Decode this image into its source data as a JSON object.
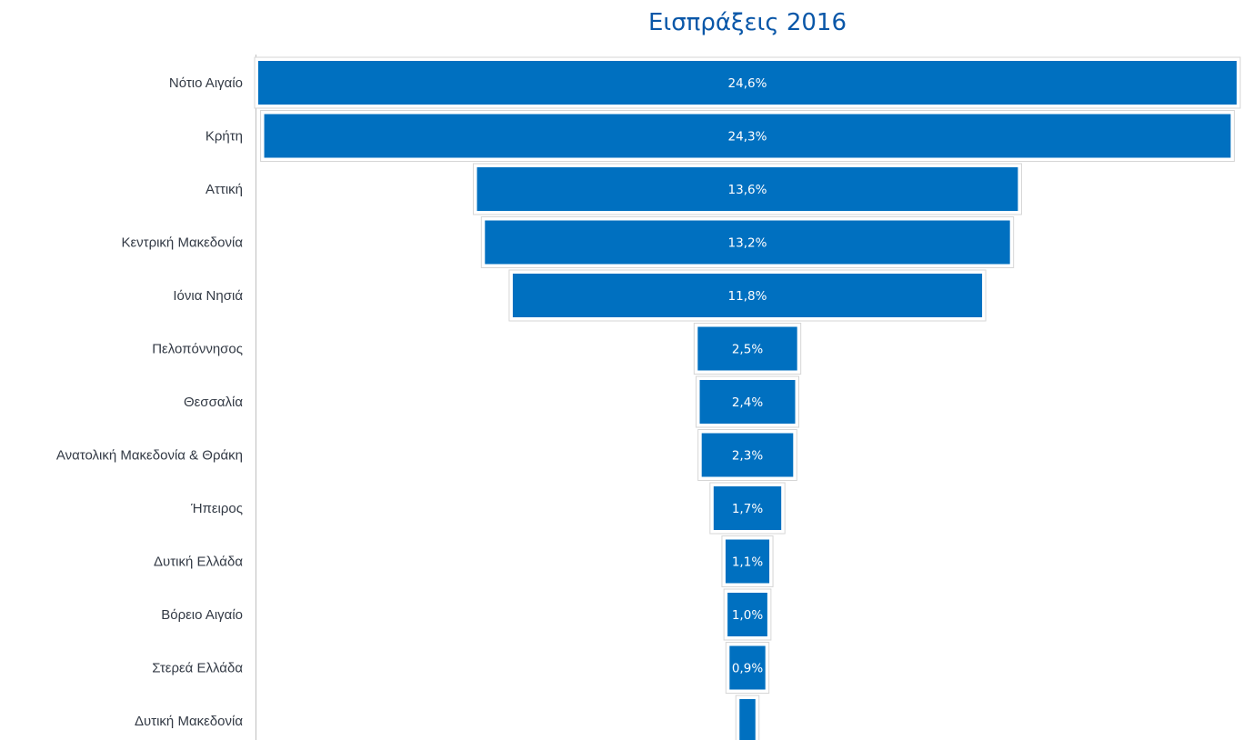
{
  "chart_data": {
    "type": "bar",
    "subtype": "funnel",
    "orientation": "horizontal",
    "title": "Εισπράξεις 2016",
    "categories": [
      "Νότιο Αιγαίο",
      "Κρήτη",
      "Αττική",
      "Κεντρική Μακεδονία",
      "Ιόνια Νησιά",
      "Πελοπόννησος",
      "Θεσσαλία",
      "Ανατολική Μακεδονία & Θράκη",
      "Ήπειρος",
      "Δυτική Ελλάδα",
      "Βόρειο Αιγαίο",
      "Στερεά Ελλάδα",
      "Δυτική Μακεδονία"
    ],
    "values": [
      24.6,
      24.3,
      13.6,
      13.2,
      11.8,
      2.5,
      2.4,
      2.3,
      1.7,
      1.1,
      1.0,
      0.9,
      0.4
    ],
    "data_labels": [
      "24,6%",
      "24,3%",
      "13,6%",
      "13,2%",
      "11,8%",
      "2,5%",
      "2,4%",
      "2,3%",
      "1,7%",
      "1,1%",
      "1,0%",
      "0,9%",
      ""
    ],
    "bar_color": "#0070c0",
    "title_color": "#0a57a8",
    "label_color": "#333a45",
    "grid": false,
    "legend": "none"
  }
}
